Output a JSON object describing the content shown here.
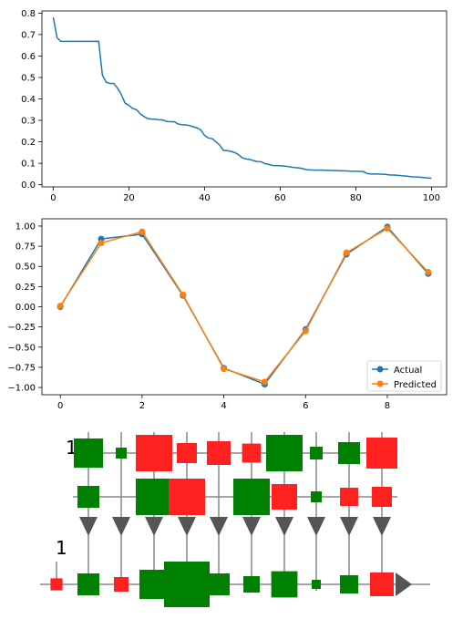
{
  "chart_data": [
    {
      "type": "line",
      "title": "",
      "xlabel": "",
      "ylabel": "",
      "xlim": [
        -3,
        104
      ],
      "ylim": [
        -0.01,
        0.81
      ],
      "xticks": [
        0,
        20,
        40,
        60,
        80,
        100
      ],
      "yticks": [
        0.0,
        0.1,
        0.2,
        0.3,
        0.4,
        0.5,
        0.6,
        0.7,
        0.8
      ],
      "grid": false,
      "color": "#1f77b4",
      "series": [
        {
          "x": [
            0,
            1,
            2,
            3,
            4,
            5,
            6,
            7,
            8,
            9,
            10,
            11,
            12,
            13,
            14,
            15,
            16,
            17,
            18,
            19,
            20,
            21,
            22,
            23,
            24,
            25,
            26,
            27,
            28,
            29,
            30,
            31,
            32,
            33,
            34,
            35,
            36,
            37,
            38,
            39,
            40,
            41,
            42,
            43,
            44,
            45,
            46,
            47,
            48,
            49,
            50,
            51,
            52,
            53,
            54,
            55,
            56,
            57,
            58,
            59,
            60,
            61,
            62,
            63,
            64,
            65,
            66,
            67,
            68,
            69,
            70,
            71,
            72,
            73,
            74,
            75,
            76,
            77,
            78,
            79,
            80,
            81,
            82,
            83,
            84,
            85,
            86,
            87,
            88,
            89,
            90,
            91,
            92,
            93,
            94,
            95,
            96,
            97,
            98,
            99,
            100
          ],
          "y": [
            0.78,
            0.685,
            0.668,
            0.668,
            0.668,
            0.668,
            0.668,
            0.668,
            0.668,
            0.668,
            0.668,
            0.668,
            0.668,
            0.51,
            0.478,
            0.472,
            0.472,
            0.45,
            0.42,
            0.38,
            0.37,
            0.355,
            0.35,
            0.33,
            0.318,
            0.308,
            0.306,
            0.305,
            0.303,
            0.302,
            0.295,
            0.294,
            0.294,
            0.283,
            0.28,
            0.279,
            0.276,
            0.27,
            0.265,
            0.255,
            0.23,
            0.218,
            0.215,
            0.2,
            0.185,
            0.16,
            0.159,
            0.155,
            0.15,
            0.14,
            0.125,
            0.12,
            0.118,
            0.112,
            0.108,
            0.107,
            0.098,
            0.095,
            0.09,
            0.089,
            0.089,
            0.087,
            0.085,
            0.082,
            0.08,
            0.078,
            0.075,
            0.07,
            0.069,
            0.068,
            0.068,
            0.068,
            0.067,
            0.067,
            0.066,
            0.066,
            0.065,
            0.065,
            0.064,
            0.063,
            0.063,
            0.062,
            0.061,
            0.052,
            0.05,
            0.05,
            0.05,
            0.049,
            0.048,
            0.046,
            0.045,
            0.044,
            0.042,
            0.041,
            0.039,
            0.037,
            0.036,
            0.035,
            0.033,
            0.032,
            0.03
          ]
        }
      ]
    },
    {
      "type": "line",
      "title": "",
      "xlabel": "",
      "ylabel": "",
      "xlim": [
        -0.45,
        9.45
      ],
      "ylim": [
        -1.09,
        1.09
      ],
      "xticks": [
        0,
        2,
        4,
        6,
        8
      ],
      "yticks": [
        -1.0,
        -0.75,
        -0.5,
        -0.25,
        0.0,
        0.25,
        0.5,
        0.75,
        1.0
      ],
      "ytick_labels": [
        "−1.00",
        "−0.75",
        "−0.50",
        "−0.25",
        "0.00",
        "0.25",
        "0.50",
        "0.75",
        "1.00"
      ],
      "grid": false,
      "legend": "lower-right",
      "x": [
        0,
        1,
        2,
        3,
        4,
        5,
        6,
        7,
        8,
        9
      ],
      "series": [
        {
          "name": "Actual",
          "color": "#1f77b4",
          "values": [
            0.0,
            0.84,
            0.9,
            0.14,
            -0.76,
            -0.96,
            -0.28,
            0.65,
            0.99,
            0.41
          ]
        },
        {
          "name": "Predicted",
          "color": "#ff7f0e",
          "values": [
            0.01,
            0.79,
            0.93,
            0.15,
            -0.77,
            -0.93,
            -0.3,
            0.67,
            0.97,
            0.43
          ]
        }
      ]
    },
    {
      "type": "diagram",
      "label_top": "1",
      "label_bottom": "1",
      "colors": {
        "positive": "#008000",
        "negative": "#ff2020",
        "line": "#888888",
        "arrow": "#555555"
      },
      "row1": [
        0.8,
        0.3,
        1.0,
        0.55,
        0.65,
        0.52,
        1.0,
        0.35,
        0.6,
        0.85
      ],
      "row1_sign": [
        1,
        1,
        -1,
        -1,
        -1,
        -1,
        1,
        1,
        1,
        -1
      ],
      "row2": [
        0.6,
        0.0,
        1.0,
        1.0,
        0.0,
        1.0,
        0.7,
        0.3,
        0.5,
        0.55
      ],
      "row2_sign": [
        1,
        0,
        1,
        -1,
        0,
        1,
        -1,
        1,
        -1,
        -1
      ],
      "row3": [
        0.33,
        0.6,
        0.4,
        0.8,
        1.25,
        0.6,
        0.45,
        0.72,
        0.25,
        0.5,
        0.65
      ],
      "row3_sign": [
        -1,
        1,
        -1,
        1,
        1,
        1,
        1,
        1,
        1,
        1,
        -1
      ]
    }
  ]
}
